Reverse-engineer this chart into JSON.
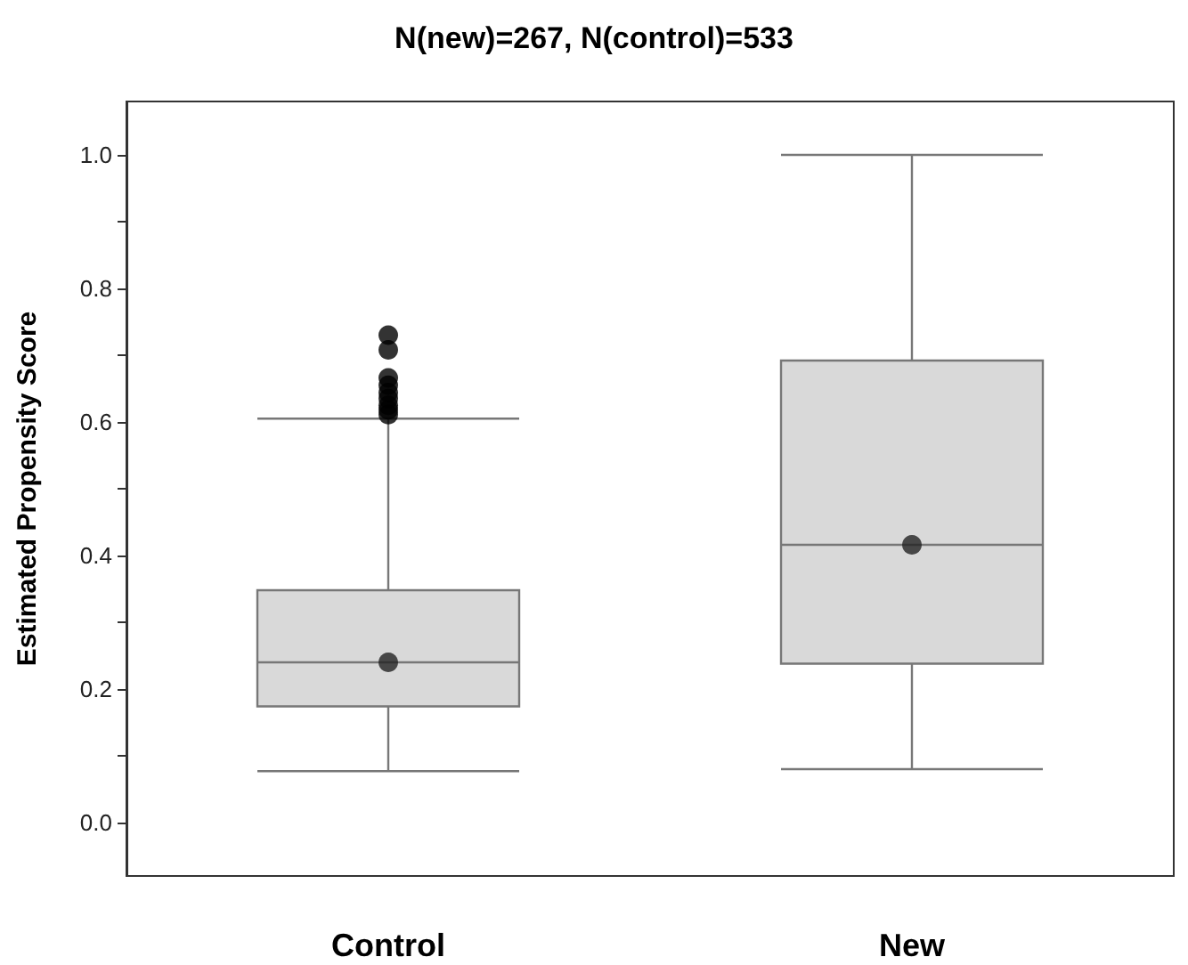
{
  "chart_data": {
    "type": "box",
    "title": "N(new)=267, N(control)=533",
    "ylabel": "Estimated Propensity Score",
    "categories": [
      "Control",
      "New"
    ],
    "boxes": [
      {
        "low": 0.077,
        "q1": 0.174,
        "median": 0.24,
        "q3": 0.348,
        "high": 0.605,
        "mean": 0.24,
        "outliers": [
          0.611,
          0.618,
          0.625,
          0.635,
          0.644,
          0.655,
          0.666,
          0.708,
          0.73
        ]
      },
      {
        "low": 0.08,
        "q1": 0.238,
        "median": 0.416,
        "q3": 0.692,
        "high": 1.0,
        "mean": 0.416
      }
    ],
    "color": "#d9d9d9",
    "ylim": [
      -0.08,
      1.08
    ],
    "yticks": [
      {
        "value": 0,
        "label": "0.0"
      },
      {
        "value": 0.1,
        "label": null
      },
      {
        "value": 0.2,
        "label": "0.2"
      },
      {
        "value": 0.3,
        "label": null
      },
      {
        "value": 0.4,
        "label": "0.4"
      },
      {
        "value": 0.5,
        "label": null
      },
      {
        "value": 0.6,
        "label": "0.6"
      },
      {
        "value": 0.7,
        "label": null
      },
      {
        "value": 0.8,
        "label": "0.8"
      },
      {
        "value": 0.9,
        "label": null
      },
      {
        "value": 1.0,
        "label": "1.0"
      }
    ],
    "marker": "circle"
  }
}
